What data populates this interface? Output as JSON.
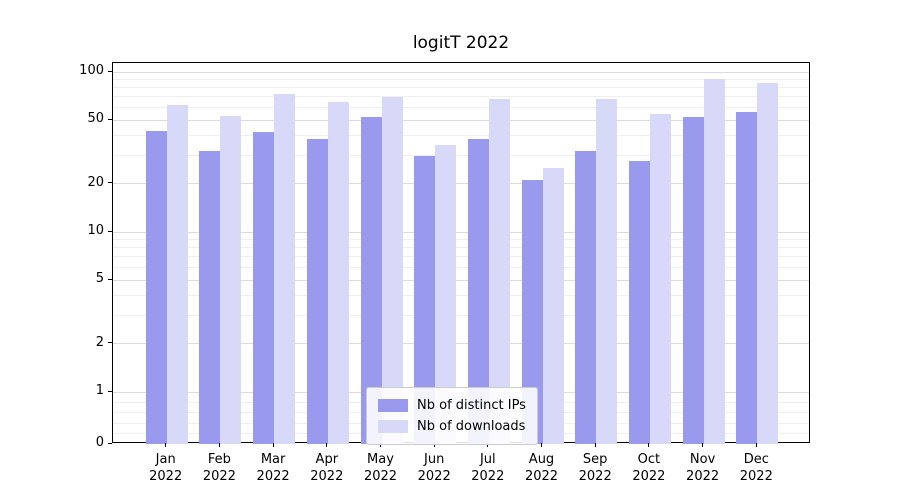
{
  "chart_data": {
    "type": "bar",
    "title": "logitT 2022",
    "categories": [
      "Jan 2022",
      "Feb 2022",
      "Mar 2022",
      "Apr 2022",
      "May 2022",
      "Jun 2022",
      "Jul 2022",
      "Aug 2022",
      "Sep 2022",
      "Oct 2022",
      "Nov 2022",
      "Dec 2022"
    ],
    "series": [
      {
        "name": "Nb of distinct IPs",
        "color": "#9999ee",
        "values": [
          43,
          32,
          42,
          38,
          52,
          30,
          38,
          21,
          32,
          28,
          52,
          56
        ]
      },
      {
        "name": "Nb of downloads",
        "color": "#d8d8f8",
        "values": [
          62,
          53,
          73,
          65,
          70,
          35,
          68,
          25,
          68,
          55,
          90,
          85
        ]
      }
    ],
    "yticks": [
      0,
      1,
      2,
      5,
      10,
      20,
      50,
      100
    ],
    "yscale": "symlog",
    "ylim": [
      0,
      114
    ],
    "xlabel": "",
    "ylabel": "",
    "grid": true,
    "legend_position": "lower center"
  }
}
